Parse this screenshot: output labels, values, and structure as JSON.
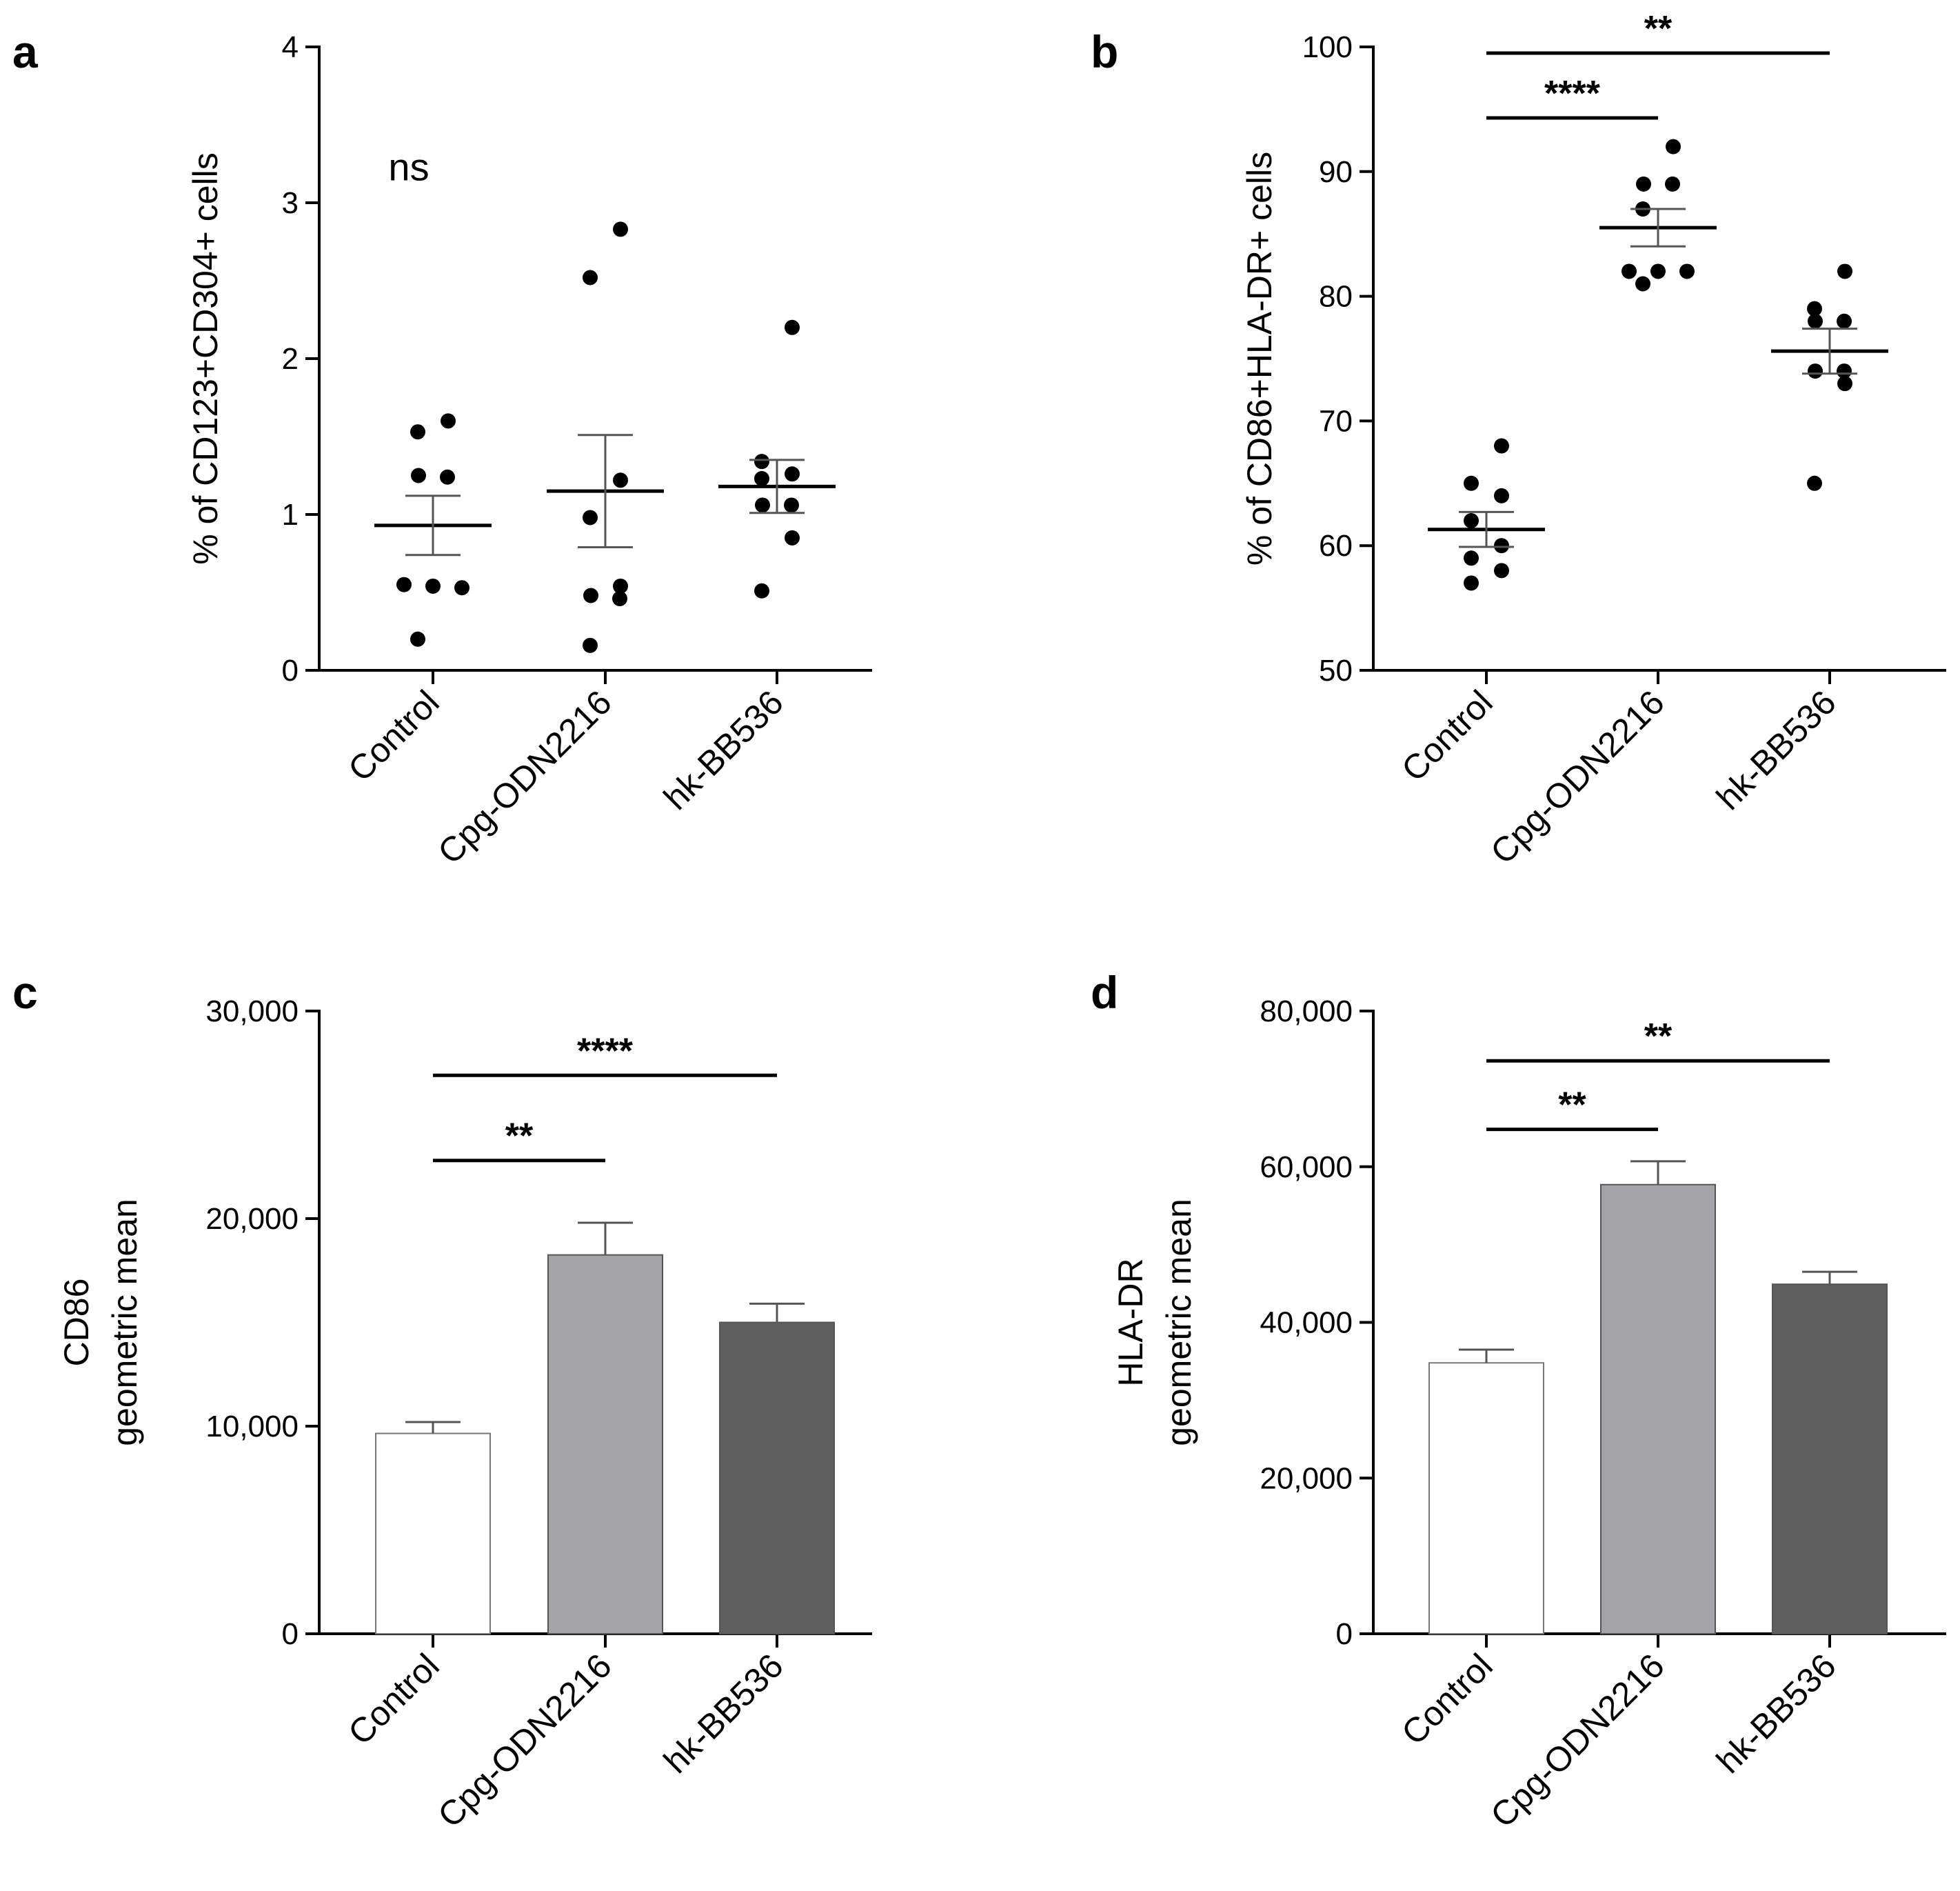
{
  "chart_data": [
    {
      "panel": "a",
      "type": "scatter",
      "categories": [
        "Control",
        "Cpg-ODN2216",
        "hk-BB536"
      ],
      "ylabel": "% of CD123+CD304+ cells",
      "ylim": [
        0,
        4
      ],
      "yticks": [
        {
          "v": 0,
          "label": "0"
        },
        {
          "v": 1,
          "label": "1"
        },
        {
          "v": 2,
          "label": "2"
        },
        {
          "v": 3,
          "label": "3"
        },
        {
          "v": 4,
          "label": "4"
        }
      ],
      "points": [
        [
          1.6,
          1.53,
          1.25,
          1.24,
          0.55,
          0.54,
          0.53,
          0.2
        ],
        [
          2.83,
          2.52,
          1.22,
          0.98,
          0.54,
          0.48,
          0.46,
          0.16
        ],
        [
          2.2,
          1.34,
          1.26,
          1.23,
          1.06,
          1.06,
          0.85,
          0.51
        ]
      ],
      "mean": [
        0.93,
        1.15,
        1.18
      ],
      "sem": [
        0.19,
        0.36,
        0.17
      ],
      "significance": [
        {
          "from": 0,
          "to": 0,
          "label": "ns",
          "y": 3.1,
          "type": "text"
        }
      ]
    },
    {
      "panel": "b",
      "type": "scatter",
      "categories": [
        "Control",
        "Cpg-ODN2216",
        "hk-BB536"
      ],
      "ylabel": "% of CD86+HLA-DR+ cells",
      "ylim": [
        50,
        100
      ],
      "yticks": [
        {
          "v": 50,
          "label": "50"
        },
        {
          "v": 60,
          "label": "60"
        },
        {
          "v": 70,
          "label": "70"
        },
        {
          "v": 80,
          "label": "80"
        },
        {
          "v": 90,
          "label": "90"
        },
        {
          "v": 100,
          "label": "100"
        }
      ],
      "points": [
        [
          68,
          65,
          64,
          62,
          60,
          59,
          58,
          57
        ],
        [
          92,
          89,
          89,
          87,
          82,
          82,
          82,
          81
        ],
        [
          82,
          79,
          78,
          78,
          74,
          74,
          73,
          65
        ]
      ],
      "mean": [
        61.3,
        85.5,
        75.6
      ],
      "sem": [
        1.4,
        1.5,
        1.8
      ],
      "significance": [
        {
          "from": 0,
          "to": 2,
          "label": "**",
          "y": 99.5
        },
        {
          "from": 0,
          "to": 1,
          "label": "****",
          "y": 94.3
        }
      ]
    },
    {
      "panel": "c",
      "type": "bar",
      "categories": [
        "Control",
        "Cpg-ODN2216",
        "hk-BB536"
      ],
      "ylabel": [
        "CD86",
        "geometric mean"
      ],
      "ylim": [
        0,
        30000
      ],
      "yticks": [
        {
          "v": 0,
          "label": "0"
        },
        {
          "v": 10000,
          "label": "10,000"
        },
        {
          "v": 20000,
          "label": "20,000"
        },
        {
          "v": 30000,
          "label": "30,000"
        }
      ],
      "values": [
        9650,
        18250,
        15000
      ],
      "err": [
        550,
        1550,
        900
      ],
      "colors": [
        "#ffffff",
        "#a3a3a8",
        "#5f5f5f"
      ],
      "significance": [
        {
          "from": 0,
          "to": 1,
          "label": "**",
          "y": 22800
        },
        {
          "from": 0,
          "to": 2,
          "label": "****",
          "y": 26900
        }
      ]
    },
    {
      "panel": "d",
      "type": "bar",
      "categories": [
        "Control",
        "Cpg-ODN2216",
        "hk-BB536"
      ],
      "ylabel": [
        "HLA-DR",
        "geometric mean"
      ],
      "ylim": [
        0,
        80000
      ],
      "yticks": [
        {
          "v": 0,
          "label": "0"
        },
        {
          "v": 20000,
          "label": "20,000"
        },
        {
          "v": 40000,
          "label": "40,000"
        },
        {
          "v": 60000,
          "label": "60,000"
        },
        {
          "v": 80000,
          "label": "80,000"
        }
      ],
      "values": [
        34800,
        57700,
        44900
      ],
      "err": [
        1700,
        3000,
        1600
      ],
      "colors": [
        "#ffffff",
        "#a3a3a8",
        "#5f5f5f"
      ],
      "significance": [
        {
          "from": 0,
          "to": 1,
          "label": "**",
          "y": 64800
        },
        {
          "from": 0,
          "to": 2,
          "label": "**",
          "y": 73600
        }
      ]
    }
  ]
}
